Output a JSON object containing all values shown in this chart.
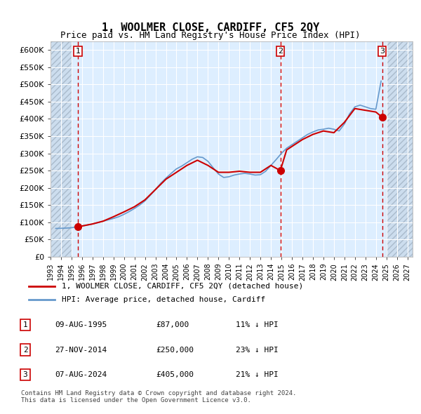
{
  "title": "1, WOOLMER CLOSE, CARDIFF, CF5 2QY",
  "subtitle": "Price paid vs. HM Land Registry's House Price Index (HPI)",
  "hpi_color": "#6699cc",
  "price_color": "#cc0000",
  "vline_color": "#cc0000",
  "bg_plot": "#ddeeff",
  "bg_hatch": "#ccddee",
  "bg_figure": "#ffffff",
  "ylim": [
    0,
    625000
  ],
  "yticks": [
    0,
    50000,
    100000,
    150000,
    200000,
    250000,
    300000,
    350000,
    400000,
    450000,
    500000,
    550000,
    600000
  ],
  "ytick_labels": [
    "£0",
    "£50K",
    "£100K",
    "£150K",
    "£200K",
    "£250K",
    "£300K",
    "£350K",
    "£400K",
    "£450K",
    "£500K",
    "£550K",
    "£600K"
  ],
  "xlim_start": 1993.0,
  "xlim_end": 2027.5,
  "sale_dates": [
    1995.6,
    2014.9,
    2024.6
  ],
  "sale_prices": [
    87000,
    250000,
    405000
  ],
  "sale_labels": [
    "1",
    "2",
    "3"
  ],
  "legend_line1": "1, WOOLMER CLOSE, CARDIFF, CF5 2QY (detached house)",
  "legend_line2": "HPI: Average price, detached house, Cardiff",
  "table_rows": [
    [
      "1",
      "09-AUG-1995",
      "£87,000",
      "11% ↓ HPI"
    ],
    [
      "2",
      "27-NOV-2014",
      "£250,000",
      "23% ↓ HPI"
    ],
    [
      "3",
      "07-AUG-2024",
      "£405,000",
      "21% ↓ HPI"
    ]
  ],
  "footnote": "Contains HM Land Registry data © Crown copyright and database right 2024.\nThis data is licensed under the Open Government Licence v3.0.",
  "hpi_years": [
    1993.5,
    1994.0,
    1994.5,
    1995.0,
    1995.5,
    1996.0,
    1996.5,
    1997.0,
    1997.5,
    1998.0,
    1998.5,
    1999.0,
    1999.5,
    2000.0,
    2000.5,
    2001.0,
    2001.5,
    2002.0,
    2002.5,
    2003.0,
    2003.5,
    2004.0,
    2004.5,
    2005.0,
    2005.5,
    2006.0,
    2006.5,
    2007.0,
    2007.5,
    2008.0,
    2008.5,
    2009.0,
    2009.5,
    2010.0,
    2010.5,
    2011.0,
    2011.5,
    2012.0,
    2012.5,
    2013.0,
    2013.5,
    2014.0,
    2014.5,
    2015.0,
    2015.5,
    2016.0,
    2016.5,
    2017.0,
    2017.5,
    2018.0,
    2018.5,
    2019.0,
    2019.5,
    2020.0,
    2020.5,
    2021.0,
    2021.5,
    2022.0,
    2022.5,
    2023.0,
    2023.5,
    2024.0,
    2024.5
  ],
  "hpi_values": [
    82000,
    82500,
    83000,
    84000,
    87000,
    89000,
    92000,
    95000,
    99000,
    103000,
    107000,
    111000,
    116000,
    123000,
    131000,
    140000,
    150000,
    162000,
    178000,
    195000,
    213000,
    228000,
    242000,
    255000,
    263000,
    273000,
    283000,
    290000,
    288000,
    277000,
    258000,
    240000,
    230000,
    232000,
    237000,
    240000,
    242000,
    240000,
    237000,
    238000,
    248000,
    265000,
    282000,
    300000,
    315000,
    325000,
    335000,
    345000,
    355000,
    362000,
    368000,
    370000,
    373000,
    370000,
    365000,
    385000,
    415000,
    435000,
    440000,
    435000,
    430000,
    428000,
    510000
  ],
  "price_line_years": [
    1995.6,
    1996.0,
    1997.0,
    1998.0,
    1999.0,
    2000.0,
    2001.0,
    2002.0,
    2003.0,
    2004.0,
    2005.0,
    2006.0,
    2007.0,
    2008.0,
    2009.0,
    2010.0,
    2011.0,
    2012.0,
    2013.0,
    2014.0,
    2014.9,
    2015.5,
    2016.0,
    2017.0,
    2018.0,
    2019.0,
    2020.0,
    2021.0,
    2022.0,
    2023.0,
    2024.0,
    2024.6
  ],
  "price_line_values": [
    87000,
    89000,
    95000,
    103000,
    116000,
    130000,
    145000,
    165000,
    195000,
    225000,
    245000,
    265000,
    280000,
    265000,
    245000,
    245000,
    248000,
    245000,
    245000,
    265000,
    250000,
    310000,
    320000,
    340000,
    355000,
    365000,
    360000,
    390000,
    430000,
    425000,
    420000,
    405000
  ],
  "xtick_years": [
    1993,
    1994,
    1995,
    1996,
    1997,
    1998,
    1999,
    2000,
    2001,
    2002,
    2003,
    2004,
    2005,
    2006,
    2007,
    2008,
    2009,
    2010,
    2011,
    2012,
    2013,
    2014,
    2015,
    2016,
    2017,
    2018,
    2019,
    2020,
    2021,
    2022,
    2023,
    2024,
    2025,
    2026,
    2027
  ]
}
